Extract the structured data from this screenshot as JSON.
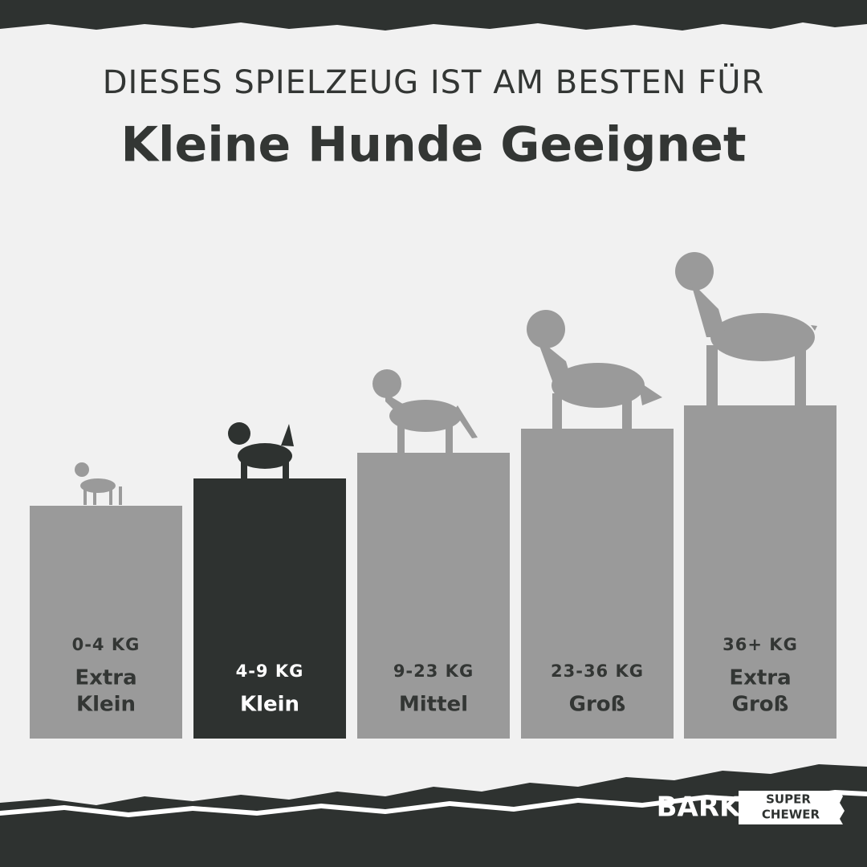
{
  "header": {
    "line1": "DIESES SPIELZEUG IST AM BESTEN FÜR",
    "line2": "Kleine Hunde Geeignet"
  },
  "sizes": [
    {
      "weight": "0-4 KG",
      "name": [
        "Extra",
        "Klein"
      ]
    },
    {
      "weight": "4-9 KG",
      "name": [
        "Klein"
      ]
    },
    {
      "weight": "9-23 KG",
      "name": [
        "Mittel"
      ]
    },
    {
      "weight": "23-36 KG",
      "name": [
        "Groß"
      ]
    },
    {
      "weight": "36+ KG",
      "name": [
        "Extra",
        "Groß"
      ]
    }
  ],
  "brand": {
    "name": "BARK",
    "tagline": [
      "SUPER",
      "CHEWER"
    ]
  }
}
